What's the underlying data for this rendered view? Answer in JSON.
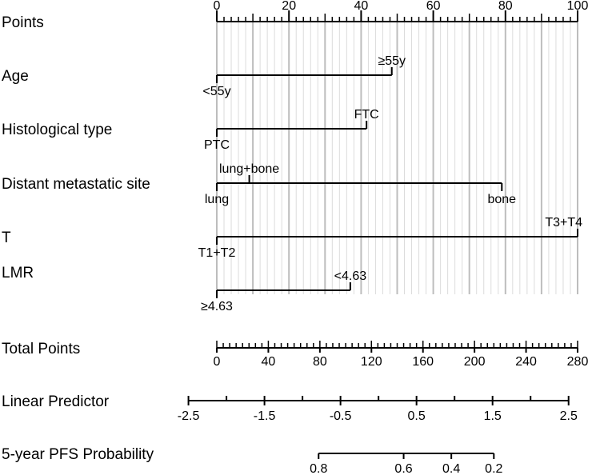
{
  "chart_data": {
    "type": "nomogram",
    "rows": [
      {
        "label": "Points",
        "kind": "scale",
        "range": [
          0,
          100
        ],
        "ticks": [
          0,
          20,
          40,
          60,
          80,
          100
        ],
        "tick_labels": [
          "0",
          "20",
          "40",
          "60",
          "80",
          "100"
        ],
        "minor_step": 2
      },
      {
        "label": "Age",
        "kind": "variable",
        "levels": [
          {
            "label": "<55y",
            "points": 0,
            "side": "below"
          },
          {
            "label": "≥55y",
            "points": 48.5,
            "side": "above"
          }
        ]
      },
      {
        "label": "Histological type",
        "kind": "variable",
        "levels": [
          {
            "label": "PTC",
            "points": 0,
            "side": "below"
          },
          {
            "label": "FTC",
            "points": 41.5,
            "side": "above"
          }
        ]
      },
      {
        "label": "Distant metastatic site",
        "kind": "variable",
        "levels": [
          {
            "label": "lung",
            "points": 0,
            "side": "below"
          },
          {
            "label": "lung+bone",
            "points": 9,
            "side": "above"
          },
          {
            "label": "bone",
            "points": 79,
            "side": "below"
          }
        ]
      },
      {
        "label": "T",
        "kind": "variable",
        "levels": [
          {
            "label": "T1+T2",
            "points": 0,
            "side": "below"
          },
          {
            "label": "T3+T4",
            "points": 100,
            "side": "above"
          }
        ]
      },
      {
        "label": "LMR",
        "kind": "variable",
        "levels": [
          {
            "label": "≥4.63",
            "points": 0,
            "side": "below"
          },
          {
            "label": "<4.63",
            "points": 37,
            "side": "above"
          }
        ]
      },
      {
        "label": "Total Points",
        "kind": "scale",
        "range": [
          0,
          280
        ],
        "ticks": [
          0,
          40,
          80,
          120,
          160,
          200,
          240,
          280
        ],
        "tick_labels": [
          "0",
          "40",
          "80",
          "120",
          "160",
          "200",
          "240",
          "280"
        ],
        "minor_step": 5
      },
      {
        "label": "Linear Predictor",
        "kind": "linear",
        "value_range": [
          -2.5,
          2.5
        ],
        "total_points_range": [
          -22,
          273
        ],
        "ticks": [
          -2.5,
          -1.5,
          -0.5,
          0.5,
          1.5,
          2.5
        ],
        "tick_labels": [
          "-2.5",
          "-1.5",
          "-0.5",
          "0.5",
          "1.5",
          "2.5"
        ],
        "minor_ticks": [
          -2,
          -1,
          0,
          1,
          2
        ]
      },
      {
        "label": "5-year PFS Probability",
        "kind": "probability",
        "points_range": [
          79,
          215
        ],
        "ticks": [
          {
            "label": "0.8",
            "total_points": 79
          },
          {
            "label": "0.6",
            "total_points": 145
          },
          {
            "label": "0.4",
            "total_points": 182
          },
          {
            "label": "0.2",
            "total_points": 215
          }
        ]
      }
    ]
  }
}
